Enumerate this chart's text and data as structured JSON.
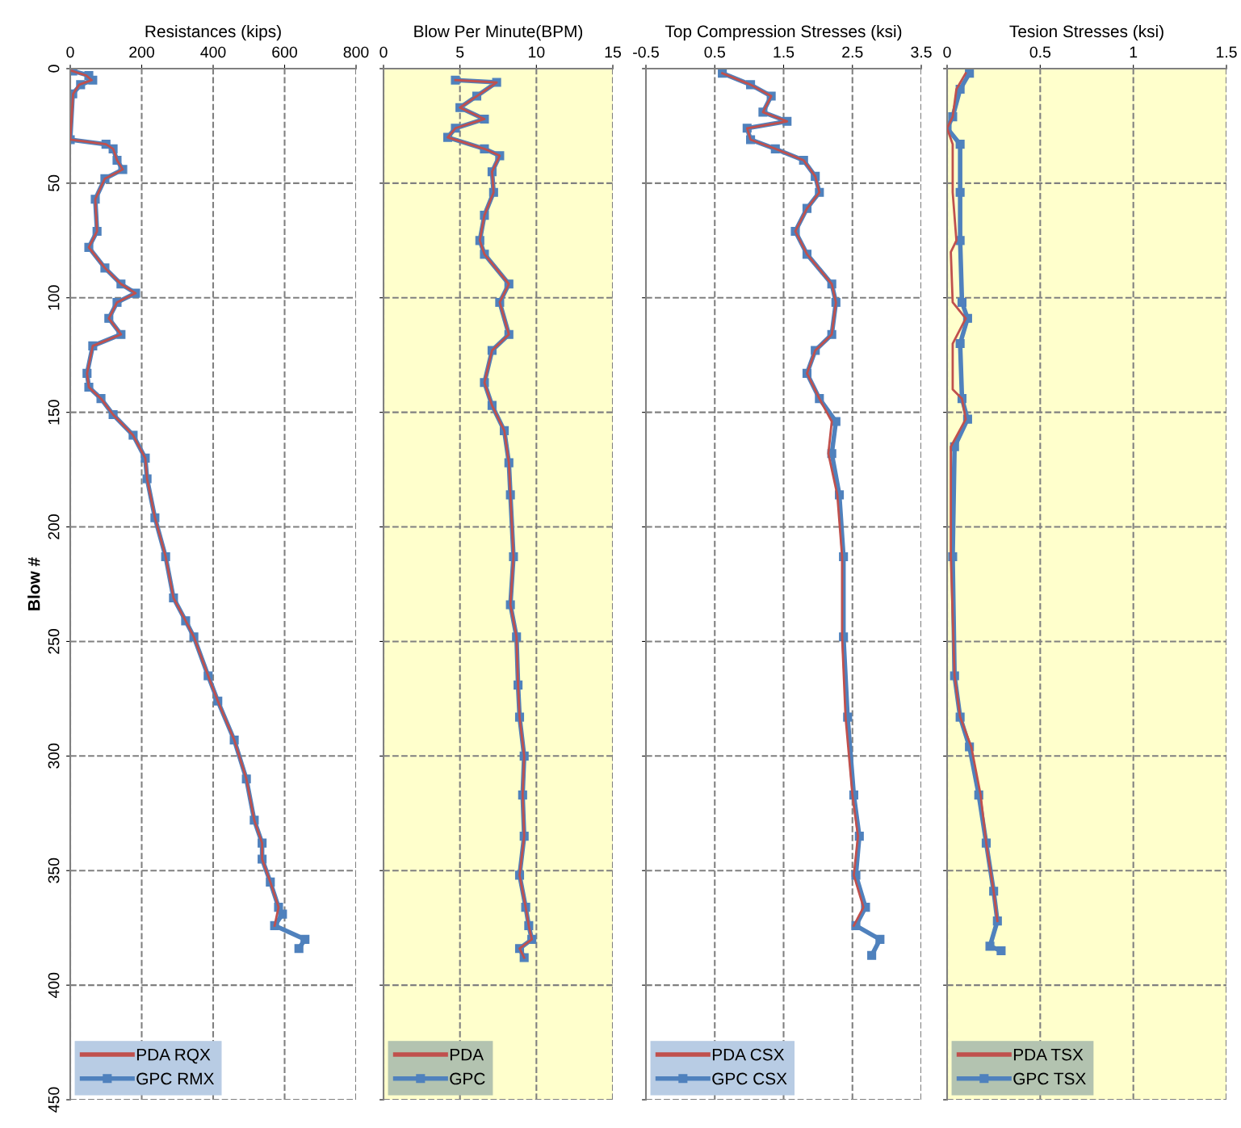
{
  "chart_data": [
    {
      "type": "line",
      "orientation": "horizontal",
      "xlabel": "Resistances (kips)",
      "ylabel": "Blow #",
      "xlim": [
        0,
        800
      ],
      "xticks": [
        0,
        200,
        400,
        600,
        800
      ],
      "ylim": [
        450,
        0
      ],
      "yticks": [
        0,
        50,
        100,
        150,
        200,
        250,
        300,
        350,
        400,
        450
      ],
      "grid": true,
      "legend": "bottom left",
      "line_style": "solid",
      "series": [
        {
          "name": "PDA RQX",
          "color": "#c0504d",
          "marker": "none",
          "x": [
            1,
            3,
            5,
            7,
            11,
            31,
            33,
            35,
            40,
            44,
            48,
            57,
            71,
            78,
            87,
            94,
            98,
            102,
            109,
            116,
            121,
            133,
            139,
            144,
            151,
            160,
            170,
            179,
            196,
            213,
            231,
            241,
            248,
            265,
            276,
            293,
            310,
            328,
            338,
            345,
            355,
            366,
            374
          ],
          "values": [
            5,
            45,
            60,
            25,
            8,
            0,
            100,
            120,
            131,
            147,
            97,
            70,
            75,
            52,
            97,
            142,
            183,
            131,
            108,
            142,
            63,
            47,
            52,
            86,
            120,
            176,
            210,
            215,
            237,
            267,
            289,
            323,
            346,
            386,
            413,
            459,
            493,
            515,
            537,
            537,
            560,
            583,
            572
          ]
        },
        {
          "name": "GPC RMX",
          "color": "#4f81bd",
          "marker": "square",
          "x": [
            1,
            3,
            5,
            7,
            11,
            31,
            33,
            35,
            40,
            44,
            48,
            57,
            71,
            78,
            87,
            94,
            98,
            102,
            109,
            116,
            121,
            133,
            139,
            144,
            151,
            160,
            170,
            179,
            196,
            213,
            231,
            241,
            248,
            265,
            276,
            293,
            310,
            328,
            338,
            345,
            355,
            366,
            369,
            374,
            380,
            384
          ],
          "values": [
            7,
            52,
            63,
            29,
            7,
            0,
            100,
            120,
            131,
            147,
            97,
            70,
            75,
            52,
            97,
            142,
            183,
            131,
            108,
            142,
            63,
            47,
            52,
            86,
            120,
            176,
            210,
            215,
            237,
            267,
            289,
            323,
            346,
            386,
            413,
            459,
            493,
            515,
            537,
            537,
            560,
            583,
            594,
            572,
            657,
            640
          ]
        }
      ]
    },
    {
      "type": "line",
      "orientation": "horizontal",
      "xlabel": "Blow Per Minute(BPM)",
      "xlim": [
        0,
        15
      ],
      "xticks": [
        0,
        5,
        10,
        15
      ],
      "ylim": [
        450,
        0
      ],
      "yticks": [
        0,
        50,
        100,
        150,
        200,
        250,
        300,
        350,
        400,
        450
      ],
      "tick_labels": "x",
      "grid": true,
      "legend": "bottom left",
      "line_style": "solid",
      "series": [
        {
          "name": "PDA",
          "color": "#c0504d",
          "marker": "none",
          "x": [
            5,
            6,
            12,
            17,
            22,
            26,
            30,
            35,
            38,
            45,
            54,
            64,
            75,
            81,
            94,
            102,
            116,
            123,
            137,
            147,
            158,
            172,
            186,
            213,
            234,
            248,
            269,
            283,
            300,
            317,
            335,
            352,
            366,
            374,
            380,
            384,
            388
          ],
          "values": [
            4.7,
            7.4,
            6.1,
            5.0,
            6.6,
            4.7,
            4.2,
            6.6,
            7.6,
            7.1,
            7.2,
            6.6,
            6.3,
            6.6,
            8.2,
            7.6,
            8.2,
            7.1,
            6.6,
            7.1,
            7.9,
            8.2,
            8.3,
            8.5,
            8.3,
            8.7,
            8.8,
            8.9,
            9.2,
            9.1,
            9.2,
            8.9,
            9.3,
            9.5,
            9.7,
            8.9,
            9.2
          ]
        },
        {
          "name": "GPC",
          "color": "#4f81bd",
          "marker": "square",
          "x": [
            5,
            6,
            12,
            17,
            22,
            26,
            30,
            35,
            38,
            45,
            54,
            64,
            75,
            81,
            94,
            102,
            116,
            123,
            137,
            147,
            158,
            172,
            186,
            213,
            234,
            248,
            269,
            283,
            300,
            317,
            335,
            352,
            366,
            374,
            380,
            384,
            388
          ],
          "values": [
            4.7,
            7.4,
            6.1,
            5.0,
            6.6,
            4.7,
            4.2,
            6.6,
            7.6,
            7.1,
            7.2,
            6.6,
            6.3,
            6.6,
            8.2,
            7.6,
            8.2,
            7.1,
            6.6,
            7.1,
            7.9,
            8.2,
            8.3,
            8.5,
            8.3,
            8.7,
            8.8,
            8.9,
            9.2,
            9.1,
            9.2,
            8.9,
            9.3,
            9.5,
            9.7,
            8.9,
            9.2
          ]
        }
      ]
    },
    {
      "type": "line",
      "orientation": "horizontal",
      "xlabel": "Top Compression Stresses (ksi)",
      "xlim": [
        -0.5,
        3.5
      ],
      "xticks": [
        -0.5,
        0.5,
        1.5,
        2.5,
        3.5
      ],
      "ylim": [
        450,
        0
      ],
      "yticks": [
        0,
        50,
        100,
        150,
        200,
        250,
        300,
        350,
        400,
        450
      ],
      "tick_labels": "x",
      "grid": true,
      "legend": "bottom left",
      "line_style": "solid",
      "series": [
        {
          "name": "PDA CSX",
          "color": "#c0504d",
          "marker": "none",
          "x": [
            2,
            7,
            12,
            19,
            23,
            26,
            31,
            35,
            40,
            47,
            54,
            61,
            71,
            81,
            94,
            102,
            116,
            123,
            133,
            144,
            154,
            168,
            186,
            213,
            248,
            283,
            317,
            335,
            352,
            366,
            374
          ],
          "values": [
            0.61,
            1.02,
            1.32,
            1.2,
            1.55,
            0.97,
            1.02,
            1.38,
            1.79,
            1.96,
            2.02,
            1.84,
            1.67,
            1.84,
            2.2,
            2.26,
            2.2,
            1.96,
            1.84,
            2.02,
            2.2,
            2.15,
            2.28,
            2.35,
            2.35,
            2.4,
            2.5,
            2.58,
            2.52,
            2.66,
            2.52
          ]
        },
        {
          "name": "GPC CSX",
          "color": "#4f81bd",
          "marker": "square",
          "x": [
            2,
            7,
            12,
            19,
            23,
            26,
            31,
            35,
            40,
            47,
            54,
            61,
            71,
            81,
            94,
            102,
            116,
            123,
            133,
            144,
            154,
            168,
            186,
            213,
            248,
            283,
            317,
            335,
            352,
            366,
            374,
            380,
            387
          ],
          "values": [
            0.61,
            1.02,
            1.32,
            1.2,
            1.55,
            0.97,
            1.02,
            1.38,
            1.79,
            1.96,
            2.02,
            1.84,
            1.67,
            1.84,
            2.2,
            2.26,
            2.2,
            1.96,
            1.84,
            2.02,
            2.26,
            2.2,
            2.31,
            2.37,
            2.37,
            2.43,
            2.52,
            2.6,
            2.55,
            2.69,
            2.55,
            2.9,
            2.78
          ]
        }
      ]
    },
    {
      "type": "line",
      "orientation": "horizontal",
      "xlabel": "Tesion Stresses (ksi)",
      "xlim": [
        0,
        1.5
      ],
      "xticks": [
        0,
        0.5,
        1,
        1.5
      ],
      "ylim": [
        450,
        0
      ],
      "yticks": [
        0,
        50,
        100,
        150,
        200,
        250,
        300,
        350,
        400,
        450
      ],
      "tick_labels": "x",
      "grid": true,
      "legend": "bottom left",
      "line_style": "solid",
      "series": [
        {
          "name": "PDA TSX",
          "color": "#c0504d",
          "marker": "none",
          "x": [
            2,
            9,
            21,
            26,
            33,
            54,
            75,
            80,
            102,
            109,
            120,
            125,
            140,
            144,
            153,
            165,
            213,
            265,
            283,
            296,
            317,
            338,
            359,
            372
          ],
          "values": [
            0.1,
            0.05,
            0.03,
            0.0,
            0.03,
            0.03,
            0.05,
            0.02,
            0.03,
            0.1,
            0.03,
            0.03,
            0.03,
            0.08,
            0.1,
            0.02,
            0.02,
            0.04,
            0.07,
            0.13,
            0.18,
            0.21,
            0.25,
            0.27
          ]
        },
        {
          "name": "GPC TSX",
          "color": "#4f81bd",
          "marker": "square",
          "x": [
            2,
            9,
            21,
            26,
            33,
            54,
            75,
            102,
            109,
            120,
            144,
            153,
            165,
            213,
            265,
            283,
            296,
            317,
            338,
            359,
            372,
            383,
            385
          ],
          "values": [
            0.12,
            0.07,
            0.03,
            0.0,
            0.07,
            0.07,
            0.07,
            0.08,
            0.11,
            0.07,
            0.08,
            0.11,
            0.04,
            0.03,
            0.04,
            0.07,
            0.12,
            0.17,
            0.21,
            0.25,
            0.27,
            0.23,
            0.29
          ]
        }
      ]
    }
  ]
}
